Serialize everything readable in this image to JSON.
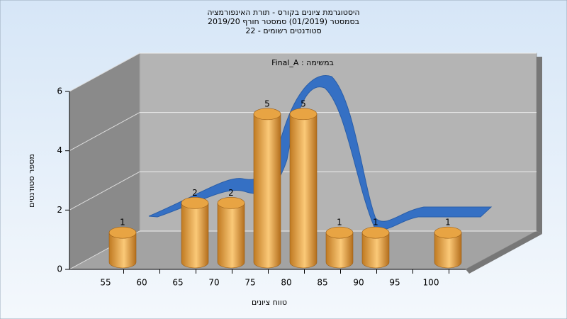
{
  "chart_data": {
    "type": "bar",
    "title": [
      "היסטוגרמת ציונים בקורס - תורת האינפורמציה",
      "בסמסטר  (01/2019)  סמסטר חורף 2019/20",
      "סטודנטים רשומים - 22"
    ],
    "annotation": "Final_A : במשימה",
    "x_label": "טווח ציונים",
    "y_label": "מספר סטודנטים",
    "categories": [
      "55",
      "60",
      "65",
      "70",
      "75",
      "80",
      "85",
      "90",
      "95",
      "100"
    ],
    "values": [
      1,
      0,
      2,
      2,
      5,
      5,
      1,
      1,
      0,
      1
    ],
    "color": "#e8a443",
    "ylim": [
      0,
      6
    ],
    "yticks": [
      0,
      2,
      4,
      6
    ],
    "grid": true
  }
}
